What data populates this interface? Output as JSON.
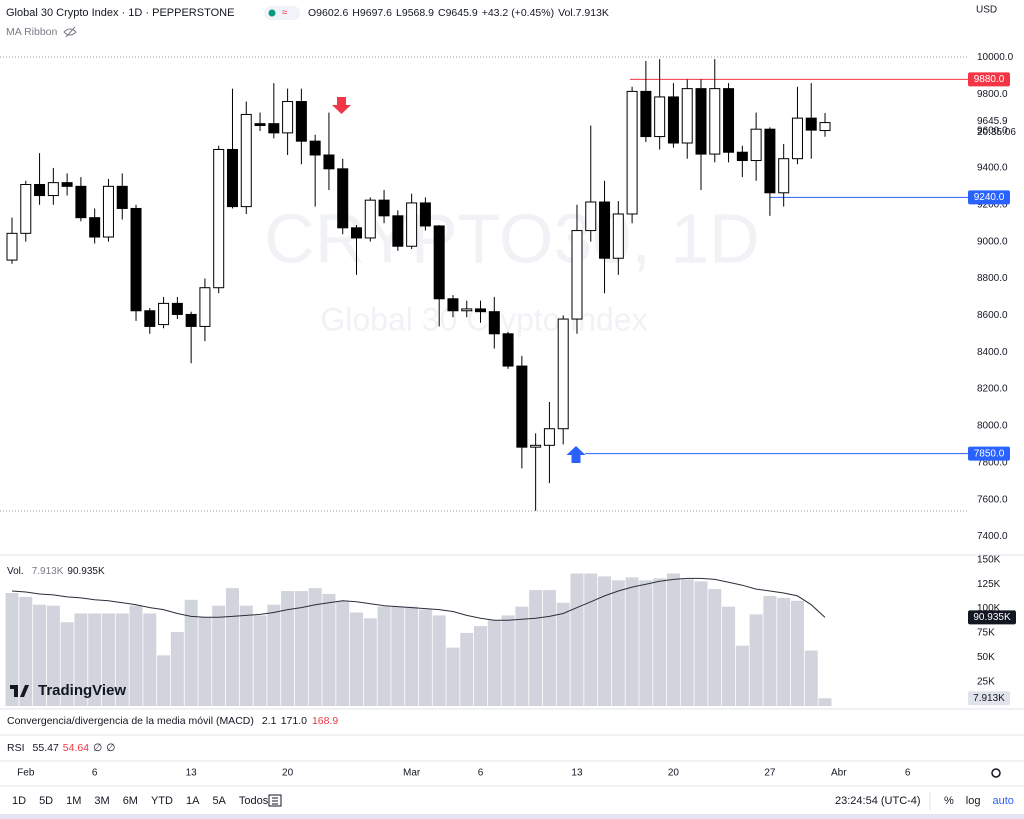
{
  "header": {
    "symbol": "Global 30 Crypto Index · 1D · PEPPERSTONE",
    "ohlc_labels": [
      "O",
      "H",
      "L",
      "C"
    ],
    "change": "+43.2 (+0.45%)",
    "vol_label": "Vol.",
    "vol_value": "7.913K",
    "vol_ma_value": "90.935K",
    "indicator": "MA Ribbon",
    "currency": "USD",
    "countdown": "20:35:06"
  },
  "watermark": {
    "line1": "CRYPTO30, 1D",
    "line2": "Global 30 Crypto Index"
  },
  "logo": "TradingView",
  "chart_data": {
    "type": "candlestick",
    "categories": [
      null,
      "Feb",
      null,
      null,
      null,
      null,
      "6",
      null,
      null,
      null,
      null,
      null,
      null,
      "13",
      null,
      null,
      null,
      null,
      null,
      null,
      "20",
      null,
      null,
      null,
      null,
      null,
      null,
      null,
      null,
      "Mar",
      null,
      null,
      null,
      null,
      "6",
      null,
      null,
      null,
      null,
      null,
      null,
      "13",
      null,
      null,
      null,
      null,
      null,
      null,
      "20",
      null,
      null,
      null,
      null,
      null,
      null,
      "27",
      null,
      null,
      null,
      null,
      "Abr",
      null,
      null,
      null,
      null,
      "6"
    ],
    "open": [
      8900,
      9045,
      9310,
      9250,
      9320,
      9300,
      9130,
      9025,
      9300,
      9180,
      8625,
      8550,
      8665,
      8605,
      8540,
      8750,
      9500,
      9190,
      9640,
      9640,
      9590,
      9760,
      9545,
      9470,
      9395,
      9075,
      9020,
      9225,
      9140,
      8975,
      9210,
      9085,
      8690,
      8625,
      8635,
      8620,
      8500,
      8325,
      7885,
      7895,
      7985,
      8580,
      9060,
      9215,
      8910,
      9150,
      9815,
      9570,
      9785,
      9535,
      9830,
      9475,
      9830,
      9485,
      9440,
      9610,
      9265,
      9450,
      9670,
      9602.6,
      null,
      null,
      null,
      null,
      null,
      null
    ],
    "high": [
      9130,
      9330,
      9480,
      9400,
      9370,
      9350,
      9180,
      9340,
      9370,
      9200,
      8640,
      8700,
      8700,
      8620,
      8800,
      9520,
      9830,
      9760,
      9700,
      9860,
      9830,
      9830,
      9580,
      9700,
      9450,
      9090,
      9240,
      9280,
      9170,
      9260,
      9240,
      9090,
      8710,
      8680,
      8680,
      8700,
      8510,
      8380,
      7960,
      8130,
      8600,
      9200,
      9630,
      9330,
      9220,
      9840,
      9980,
      9990,
      9860,
      9880,
      9880,
      9990,
      9860,
      9520,
      9700,
      9620,
      9530,
      9840,
      9860,
      9697.6,
      null,
      null,
      null,
      null,
      null,
      null
    ],
    "low": [
      8880,
      9000,
      9200,
      9200,
      9250,
      9110,
      8990,
      9000,
      9120,
      8570,
      8500,
      8530,
      8580,
      8340,
      8460,
      8720,
      9180,
      9150,
      9600,
      9560,
      9470,
      9420,
      9190,
      9280,
      9040,
      8820,
      9000,
      9100,
      8950,
      8960,
      9060,
      8540,
      8590,
      8590,
      8560,
      8420,
      8310,
      7770,
      7540,
      7690,
      7900,
      8500,
      9000,
      8720,
      8820,
      9100,
      9540,
      9500,
      9510,
      9450,
      9280,
      9430,
      9430,
      9350,
      9330,
      9140,
      9190,
      9420,
      9450,
      9568.9,
      null,
      null,
      null,
      null,
      null,
      null
    ],
    "close": [
      9045,
      9310,
      9250,
      9320,
      9300,
      9130,
      9025,
      9300,
      9180,
      8625,
      8540,
      8665,
      8605,
      8540,
      8750,
      9500,
      9190,
      9690,
      9630,
      9590,
      9760,
      9545,
      9470,
      9395,
      9075,
      9020,
      9225,
      9140,
      8975,
      9210,
      9085,
      8690,
      8625,
      8635,
      8620,
      8500,
      8325,
      7885,
      7895,
      7985,
      8580,
      9060,
      9215,
      8910,
      9150,
      9815,
      9570,
      9785,
      9535,
      9830,
      9475,
      9830,
      9485,
      9440,
      9610,
      9265,
      9450,
      9670,
      9605,
      9645.9,
      null,
      null,
      null,
      null,
      null,
      null
    ],
    "up_color": "#ffffff",
    "down_color": "#000000",
    "wick_color": "#000000",
    "ylim": [
      7300,
      10300
    ],
    "yticks": [
      {
        "value": 7400,
        "label": "7400.0"
      },
      {
        "value": 7600,
        "label": "7600.0"
      },
      {
        "value": 7800,
        "label": "7800.0"
      },
      {
        "value": 8000,
        "label": "8000.0"
      },
      {
        "value": 8200,
        "label": "8200.0"
      },
      {
        "value": 8400,
        "label": "8400.0"
      },
      {
        "value": 8600,
        "label": "8600.0"
      },
      {
        "value": 8800,
        "label": "8800.0"
      },
      {
        "value": 9000,
        "label": "9000.0"
      },
      {
        "value": 9200,
        "label": "9200.0"
      },
      {
        "value": 9400,
        "label": "9400.0"
      },
      {
        "value": 9600,
        "label": "9600.0"
      },
      {
        "value": 9800,
        "label": "9800.0"
      },
      {
        "value": 10000,
        "label": "10000.0"
      }
    ],
    "price_lines": [
      {
        "value": 9880,
        "label": "9880.0",
        "color": "#f23645"
      },
      {
        "value": 9240,
        "label": "9240.0",
        "color": "#2962ff"
      },
      {
        "value": 7850,
        "label": "7850.0",
        "color": "#2962ff"
      }
    ],
    "volume": {
      "color": "#d1d4dc",
      "ma_color": "#2a2e39",
      "values": [
        116,
        112,
        104,
        103,
        86,
        95,
        95,
        95,
        95,
        103,
        95,
        52,
        76,
        109,
        91,
        103,
        121,
        103,
        93,
        104,
        118,
        118,
        121,
        115,
        108,
        96,
        90,
        102,
        102,
        102,
        99,
        93,
        60,
        75,
        82,
        88,
        93,
        102,
        119,
        119,
        106,
        136,
        136,
        133,
        129,
        132,
        129,
        131,
        136,
        130,
        128,
        120,
        102,
        62,
        94,
        113,
        111,
        108,
        57,
        7.913,
        null,
        null,
        null,
        null,
        null,
        null
      ],
      "ma": [
        118,
        117,
        115,
        114,
        112,
        111,
        109,
        108,
        106,
        104,
        101,
        99,
        95,
        92,
        91,
        91,
        92,
        93,
        94,
        96,
        99,
        101,
        104,
        106,
        108,
        107,
        105,
        103,
        102,
        101,
        100,
        99,
        97,
        93,
        90,
        88,
        88,
        89,
        90,
        92,
        95,
        101,
        107,
        113,
        118,
        122,
        125,
        128,
        130,
        131,
        131,
        130,
        127,
        124,
        120,
        118,
        116,
        113,
        104,
        90.935,
        null,
        null,
        null,
        null,
        null,
        null
      ],
      "ylim": [
        0,
        155
      ],
      "yticks": [
        {
          "value": 25,
          "label": "25K"
        },
        {
          "value": 50,
          "label": "50K"
        },
        {
          "value": 75,
          "label": "75K"
        },
        {
          "value": 100,
          "label": "100K"
        },
        {
          "value": 125,
          "label": "125K"
        },
        {
          "value": 150,
          "label": "150K"
        }
      ]
    }
  },
  "macd": {
    "title": "Convergencia/divergencia de la media móvil (MACD)",
    "values": [
      "2.1",
      "171.0",
      "168.9"
    ]
  },
  "rsi": {
    "title": "RSI",
    "values": [
      "55.47",
      "54.64",
      "∅",
      "∅"
    ]
  },
  "toolbar": {
    "periods": [
      "1D",
      "5D",
      "1M",
      "3M",
      "6M",
      "YTD",
      "1A",
      "5A",
      "Todos"
    ],
    "clock": "23:24:54 (UTC-4)",
    "right_buttons": [
      "%",
      "log",
      "auto"
    ]
  }
}
